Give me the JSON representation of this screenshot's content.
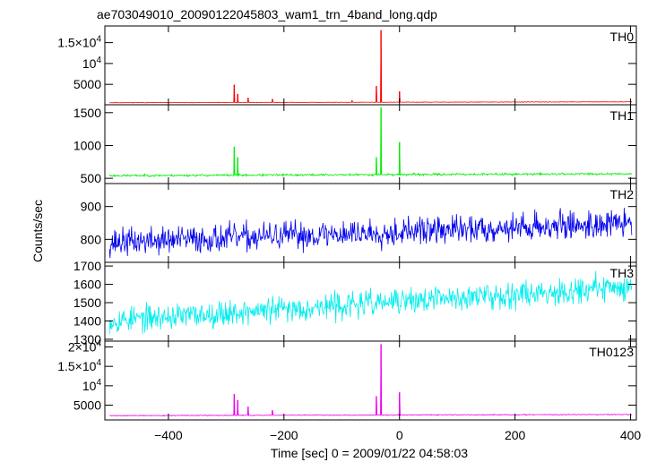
{
  "chart_data": {
    "type": "line",
    "title": "ae703049010_20090122045803_wam1_trn_4band_long.qdp",
    "xlabel": "Time [sec] 0 = 2009/01/22 04:58:03",
    "ylabel": "Counts/sec",
    "xlim": [
      -510,
      410
    ],
    "x_ticks": [
      {
        "value": -400,
        "label": "−400"
      },
      {
        "value": -200,
        "label": "−200"
      },
      {
        "value": 0,
        "label": "0"
      },
      {
        "value": 200,
        "label": "200"
      },
      {
        "value": 400,
        "label": "400"
      }
    ],
    "panels": [
      {
        "name": "TH0",
        "color": "#ff0000",
        "ylim": [
          100,
          19000
        ],
        "baseline_start": 600,
        "baseline_end": 800,
        "noise": 60,
        "seed": 11,
        "spikes": [
          {
            "x": -286,
            "y": 4900
          },
          {
            "x": -280,
            "y": 2700
          },
          {
            "x": -262,
            "y": 1800
          },
          {
            "x": -220,
            "y": 1500
          },
          {
            "x": -40,
            "y": 4600
          },
          {
            "x": -32,
            "y": 18000
          },
          {
            "x": -82,
            "y": 1100
          },
          {
            "x": 0,
            "y": 3300
          }
        ],
        "y_ticks": [
          {
            "value": 5000,
            "base": "5000",
            "exp": ""
          },
          {
            "value": 10000,
            "base": "10",
            "exp": "4"
          },
          {
            "value": 15000,
            "base": "1.5×10",
            "exp": "4"
          }
        ]
      },
      {
        "name": "TH1",
        "color": "#00ee00",
        "ylim": [
          420,
          1620
        ],
        "baseline_start": 540,
        "baseline_end": 570,
        "noise": 16,
        "seed": 23,
        "spikes": [
          {
            "x": -286,
            "y": 980
          },
          {
            "x": -280,
            "y": 820
          },
          {
            "x": -40,
            "y": 820
          },
          {
            "x": -32,
            "y": 1580
          },
          {
            "x": 0,
            "y": 1050
          }
        ],
        "y_ticks": [
          {
            "value": 500,
            "base": "500",
            "exp": ""
          },
          {
            "value": 1000,
            "base": "1000",
            "exp": ""
          },
          {
            "value": 1500,
            "base": "1500",
            "exp": ""
          }
        ]
      },
      {
        "name": "TH2",
        "color": "#0000ee",
        "ylim": [
          730,
          970
        ],
        "baseline_start": 790,
        "baseline_end": 850,
        "noise": 42,
        "seed": 37,
        "spikes": [],
        "y_ticks": [
          {
            "value": 800,
            "base": "800",
            "exp": ""
          },
          {
            "value": 900,
            "base": "900",
            "exp": ""
          }
        ]
      },
      {
        "name": "TH3",
        "color": "#00eeee",
        "ylim": [
          1290,
          1720
        ],
        "baseline_start": 1400,
        "baseline_end": 1590,
        "noise": 70,
        "seed": 53,
        "spikes": [],
        "y_ticks": [
          {
            "value": 1300,
            "base": "1300",
            "exp": ""
          },
          {
            "value": 1400,
            "base": "1400",
            "exp": ""
          },
          {
            "value": 1500,
            "base": "1500",
            "exp": ""
          },
          {
            "value": 1600,
            "base": "1600",
            "exp": ""
          },
          {
            "value": 1700,
            "base": "1700",
            "exp": ""
          }
        ]
      },
      {
        "name": "TH0123",
        "color": "#ee00ee",
        "ylim": [
          1200,
          21500
        ],
        "baseline_start": 2300,
        "baseline_end": 2600,
        "noise": 110,
        "seed": 71,
        "spikes": [
          {
            "x": -286,
            "y": 7900
          },
          {
            "x": -280,
            "y": 6300
          },
          {
            "x": -262,
            "y": 4600
          },
          {
            "x": -220,
            "y": 3700
          },
          {
            "x": -40,
            "y": 7300
          },
          {
            "x": -32,
            "y": 20700
          },
          {
            "x": 0,
            "y": 8300
          }
        ],
        "y_ticks": [
          {
            "value": 5000,
            "base": "5000",
            "exp": ""
          },
          {
            "value": 10000,
            "base": "10",
            "exp": "4"
          },
          {
            "value": 15000,
            "base": "1.5×10",
            "exp": "4"
          },
          {
            "value": 20000,
            "base": "2×10",
            "exp": "4"
          }
        ]
      }
    ]
  }
}
